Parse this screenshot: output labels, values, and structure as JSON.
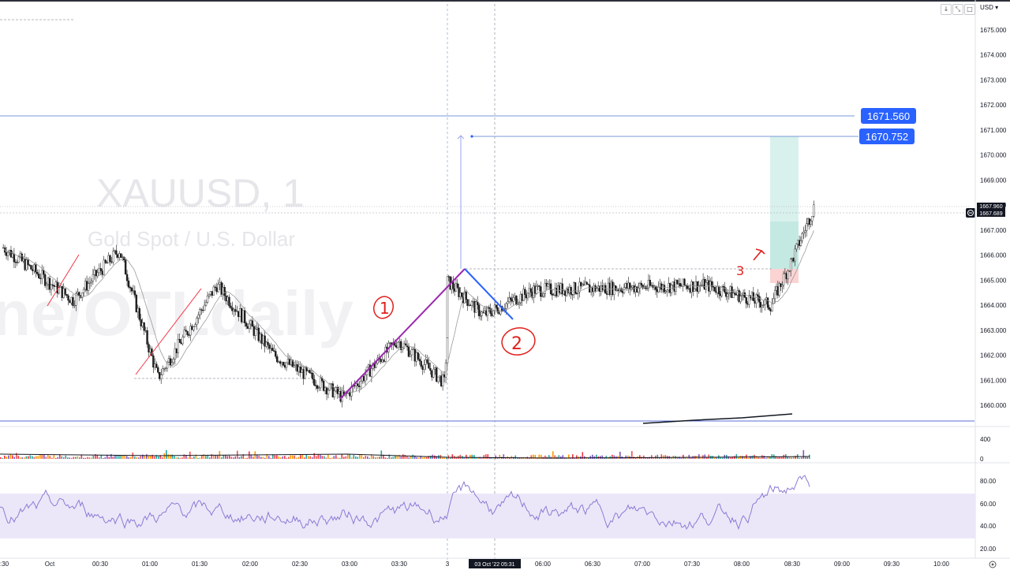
{
  "chart_data": {
    "type": "candlestick",
    "symbol_title": "XAUUSD, 1",
    "symbol_subtitle": "Gold Spot / U.S. Dollar",
    "watermark_text": "ne/OTLdaily",
    "currency": "USD",
    "price_axis": {
      "ylim": [
        1659.4,
        1675.6
      ],
      "ticks": [
        "1675.000",
        "1674.000",
        "1673.000",
        "1672.000",
        "1671.000",
        "1670.000",
        "1669.000",
        "1668.000",
        "1667.000",
        "1666.000",
        "1665.000",
        "1664.000",
        "1663.000",
        "1662.000",
        "1661.000",
        "1660.000"
      ]
    },
    "time_axis": {
      "ticks": [
        ":30",
        "Oct",
        "00:30",
        "01:00",
        "01:30",
        "02:00",
        "02:30",
        "03:00",
        "03:30",
        "3",
        "06:00",
        "06:30",
        "07:00",
        "07:30",
        "08:00",
        "08:30",
        "09:00",
        "09:30",
        "10:00"
      ],
      "crosshair_label": "03 Oct '22   05:31"
    },
    "price_tags": [
      {
        "label": "1671.560",
        "price": 1671.56
      },
      {
        "label": "1670.752",
        "price": 1670.752
      }
    ],
    "current_price_tags": [
      "1667.960",
      "1667.689"
    ],
    "volume_axis": {
      "ticks": [
        "400",
        "0"
      ]
    },
    "rsi_axis": {
      "ticks": [
        "80.00",
        "60.00",
        "40.00",
        "20.00"
      ],
      "band": [
        30,
        70
      ]
    },
    "annotations": [
      "1",
      "2",
      "3"
    ],
    "colors": {
      "up": "#1c1c1c",
      "down": "#1c1c1c",
      "rsi": "#8c7ad6",
      "rsi_band": "#ece7f8",
      "tag": "#2962ff",
      "long_profit": "#d6f0ec",
      "long_loss": "#fbd5d5",
      "trend_purple": "#9c27b0",
      "trend_blue": "#2962ff",
      "trend_red": "#f23645"
    },
    "key_points": [
      {
        "time": "23:30",
        "price": 1666.3
      },
      {
        "time": "00:15",
        "price": 1664.2
      },
      {
        "time": "00:45",
        "price": 1666.2
      },
      {
        "time": "01:10",
        "price": 1661.1
      },
      {
        "time": "01:48",
        "price": 1664.8
      },
      {
        "time": "02:25",
        "price": 1662.0
      },
      {
        "time": "03:10",
        "price": 1660.3
      },
      {
        "time": "03:45",
        "price": 1662.6
      },
      {
        "time": "04:15",
        "price": 1660.9
      },
      {
        "time": "04:20",
        "price": 1665.5
      },
      {
        "time": "04:55",
        "price": 1663.6
      },
      {
        "time": "05:30",
        "price": 1664.6
      },
      {
        "time": "07:30",
        "price": 1664.8
      },
      {
        "time": "08:15",
        "price": 1664.0
      },
      {
        "time": "08:30",
        "price": 1665.8
      },
      {
        "time": "08:45",
        "price": 1667.9
      }
    ]
  }
}
